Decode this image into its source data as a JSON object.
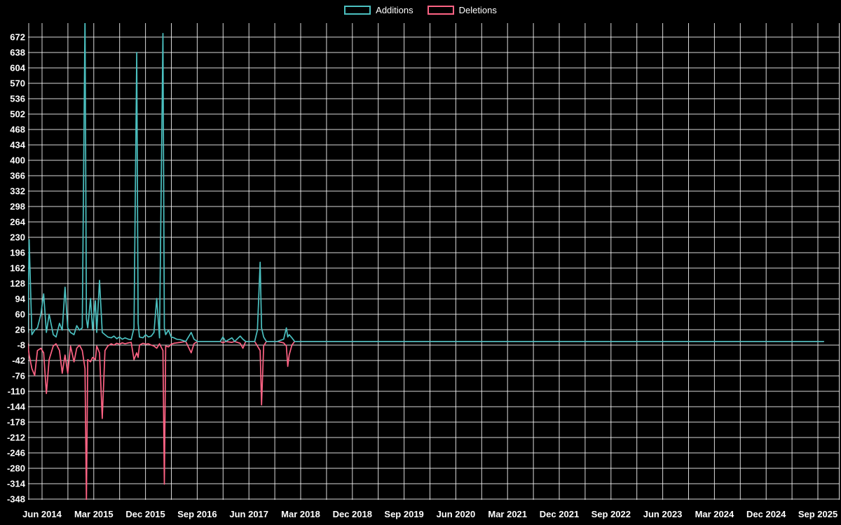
{
  "chart": {
    "background": "#000000",
    "grid_color": "#ffffff",
    "grid_opacity": 0.85,
    "text_color": "#ffffff"
  },
  "chart_data": {
    "type": "line",
    "title": "",
    "legend_position": "top",
    "grid": true,
    "x_axis": {
      "tick_labels": [
        "Jun 2014",
        "Mar 2015",
        "Dec 2015",
        "Sep 2016",
        "Jun 2017",
        "Mar 2018",
        "Dec 2018",
        "Sep 2019",
        "Jun 2020",
        "Mar 2021",
        "Dec 2021",
        "Sep 2022",
        "Jun 2023",
        "Mar 2024",
        "Dec 2024",
        "Sep 2025"
      ],
      "tick_years": [
        2014.417,
        2015.167,
        2015.917,
        2016.667,
        2017.417,
        2018.167,
        2018.917,
        2019.667,
        2020.417,
        2021.167,
        2021.917,
        2022.667,
        2023.417,
        2024.167,
        2024.917,
        2025.667
      ]
    },
    "y_axis": {
      "ticks": [
        672,
        638,
        604,
        570,
        536,
        502,
        468,
        434,
        400,
        366,
        332,
        298,
        264,
        230,
        196,
        162,
        128,
        94,
        60,
        26,
        -8,
        -42,
        -76,
        -110,
        -144,
        -178,
        -212,
        -246,
        -280,
        -314,
        -348
      ],
      "lim": [
        -348,
        672
      ],
      "tick_step": 34
    },
    "x": [
      2014.21,
      2014.23,
      2014.27,
      2014.31,
      2014.35,
      2014.4,
      2014.44,
      2014.48,
      2014.52,
      2014.58,
      2014.62,
      2014.67,
      2014.71,
      2014.75,
      2014.79,
      2014.83,
      2014.88,
      2014.92,
      2014.96,
      2015.0,
      2015.04,
      2015.06,
      2015.08,
      2015.12,
      2015.15,
      2015.19,
      2015.21,
      2015.25,
      2015.29,
      2015.33,
      2015.37,
      2015.42,
      2015.46,
      2015.5,
      2015.54,
      2015.58,
      2015.62,
      2015.67,
      2015.71,
      2015.75,
      2015.79,
      2015.81,
      2015.83,
      2015.88,
      2015.92,
      2015.96,
      2016.0,
      2016.04,
      2016.08,
      2016.12,
      2016.17,
      2016.19,
      2016.21,
      2016.25,
      2016.29,
      2016.33,
      2016.37,
      2016.42,
      2016.5,
      2016.58,
      2016.62,
      2016.67,
      2016.75,
      2016.83,
      2016.92,
      2017.0,
      2017.04,
      2017.08,
      2017.17,
      2017.21,
      2017.29,
      2017.33,
      2017.37,
      2017.42,
      2017.5,
      2017.54,
      2017.58,
      2017.6,
      2017.63,
      2017.67,
      2017.75,
      2017.83,
      2017.92,
      2017.96,
      2017.98,
      2018.0,
      2018.04,
      2018.08,
      2018.17,
      2018.25,
      2025.75
    ],
    "series": [
      {
        "name": "Additions",
        "color": "#4bc0c0",
        "values": [
          20,
          225,
          15,
          25,
          30,
          60,
          105,
          20,
          60,
          15,
          10,
          40,
          25,
          120,
          30,
          20,
          15,
          35,
          25,
          30,
          720,
          50,
          30,
          95,
          25,
          90,
          20,
          135,
          20,
          15,
          10,
          8,
          12,
          6,
          10,
          5,
          8,
          5,
          4,
          30,
          638,
          40,
          10,
          8,
          15,
          10,
          12,
          20,
          95,
          8,
          680,
          30,
          15,
          25,
          10,
          8,
          5,
          4,
          0,
          20,
          5,
          0,
          0,
          0,
          0,
          0,
          10,
          0,
          8,
          0,
          12,
          5,
          0,
          0,
          0,
          25,
          175,
          30,
          10,
          0,
          0,
          0,
          5,
          30,
          10,
          15,
          8,
          0,
          0,
          0,
          0
        ]
      },
      {
        "name": "Deletions",
        "color": "#ff6384",
        "values": [
          -5,
          -30,
          -60,
          -75,
          -20,
          -15,
          -25,
          -115,
          -40,
          -10,
          -5,
          -20,
          -70,
          -30,
          -70,
          -10,
          -45,
          -15,
          -8,
          -20,
          -60,
          -355,
          -40,
          -45,
          -35,
          -40,
          -10,
          -25,
          -170,
          -20,
          -10,
          -5,
          -8,
          -4,
          -6,
          -3,
          -5,
          -3,
          -2,
          -40,
          -25,
          -35,
          -8,
          -4,
          -6,
          -5,
          -8,
          -10,
          -15,
          -5,
          -20,
          -315,
          -10,
          -12,
          -6,
          -4,
          -3,
          -2,
          0,
          -25,
          -5,
          0,
          0,
          0,
          0,
          0,
          -3,
          0,
          -2,
          0,
          -4,
          -15,
          0,
          0,
          0,
          -10,
          -20,
          -140,
          -10,
          0,
          0,
          0,
          -3,
          -10,
          -55,
          -30,
          -8,
          0,
          0,
          0,
          0
        ]
      }
    ]
  }
}
